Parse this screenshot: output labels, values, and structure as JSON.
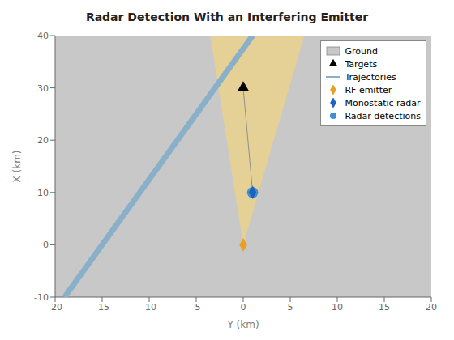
{
  "chart_data": {
    "type": "scatter",
    "title": "Radar Detection With an Interfering Emitter",
    "xlabel": "Y (km)",
    "ylabel": "X (km)",
    "xlim": [
      -20,
      20
    ],
    "ylim": [
      -10,
      40
    ],
    "xticks": [
      -20,
      -15,
      -10,
      -5,
      0,
      5,
      10,
      15,
      20
    ],
    "yticks": [
      -10,
      0,
      10,
      20,
      30,
      40
    ],
    "grid": false,
    "legend": "upper right",
    "series": [
      {
        "name": "Ground",
        "type": "background",
        "color": "#C8C8C8"
      },
      {
        "type": "polygon",
        "color": "#E8D090",
        "x": [
          0,
          -3.5,
          6.5
        ],
        "values": [
          0,
          40,
          40
        ]
      },
      {
        "name": "Targets",
        "type": "scatter",
        "marker": "triangle",
        "color": "black",
        "x": [
          0
        ],
        "values": [
          30
        ]
      },
      {
        "name": "Trajectories",
        "type": "line",
        "line_style": "wide",
        "color": "#8AAFC8",
        "x": [
          -19,
          1
        ],
        "values": [
          -10,
          40
        ]
      },
      {
        "type": "line",
        "line_style": "solid",
        "color": "#909090",
        "x": [
          0,
          1
        ],
        "values": [
          30,
          10
        ]
      },
      {
        "name": "RF emitter",
        "type": "scatter",
        "marker": "diamond",
        "color": "#E8A020",
        "x": [
          0
        ],
        "values": [
          0
        ]
      },
      {
        "name": "Monostatic radar",
        "type": "scatter",
        "marker": "diamond",
        "color": "#2060C0",
        "x": [
          1
        ],
        "values": [
          10
        ]
      },
      {
        "name": "Radar detections",
        "type": "scatter",
        "marker": "circle",
        "color": "#4090D0",
        "x": [
          1
        ],
        "values": [
          10
        ]
      }
    ]
  }
}
